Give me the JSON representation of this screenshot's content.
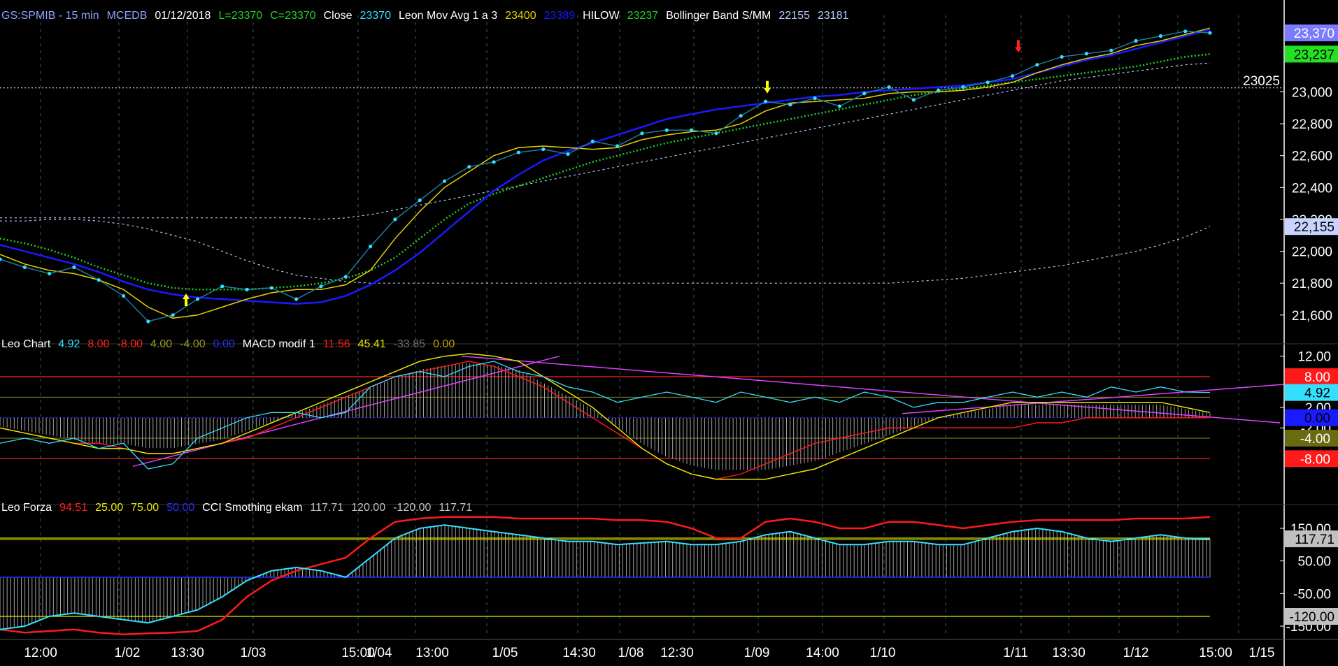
{
  "colors": {
    "background": "#000000",
    "axis": "#ffffff",
    "grid": "#3a5f5f",
    "price_dots": "#35e0ff",
    "price_line": "#1a7f9a",
    "mov_avg_fast": "#e6d200",
    "mov_avg_slow": "#1a1aff",
    "hilow_dotted": "#22d022",
    "hilow_red": "#ff2020",
    "bollinger": "#b8c8ff",
    "reference": "#ffffff",
    "leo_chart": "#35e0ff",
    "macd_red": "#ff1a1a",
    "macd_yellow": "#e6e600",
    "trendline": "#e040ff",
    "histogram": "#a0a0a0",
    "cci_red": "#ff1a1a",
    "cci_cyan": "#35e0ff",
    "cci_grey": "#c0c0c0"
  },
  "panels": {
    "price": {
      "legend": [
        {
          "text": "GS:SPMIB - 15 min",
          "color": "#8fa2ff"
        },
        {
          "text": "MCEDB",
          "color": "#8fa2ff"
        },
        {
          "text": "01/12/2018",
          "color": "#ffffff"
        },
        {
          "text": "L=23370",
          "color": "#22d022"
        },
        {
          "text": "C=23370",
          "color": "#22d022"
        },
        {
          "text": "Close",
          "color": "#ffffff"
        },
        {
          "text": "23370",
          "color": "#35e0ff"
        },
        {
          "text": "Leon Mov Avg 1 a 3",
          "color": "#ffffff"
        },
        {
          "text": "23400",
          "color": "#e6d200"
        },
        {
          "text": "23389",
          "color": "#1a1aff"
        },
        {
          "text": "HILOW",
          "color": "#ffffff"
        },
        {
          "text": "23237",
          "color": "#22d022"
        },
        {
          "text": "Bollinger Band S/MM",
          "color": "#ffffff"
        },
        {
          "text": "22155",
          "color": "#b8c8ff"
        },
        {
          "text": "23181",
          "color": "#b8c8ff"
        }
      ],
      "ticks": [
        "23,000",
        "22,800",
        "22,600",
        "22,400",
        "22,200",
        "22,000",
        "21,800",
        "21,600"
      ],
      "reference_label": "23025",
      "value_tags": [
        {
          "text": "23,370",
          "bg": "#7b7bff",
          "fg": "#ffffff",
          "y": 23370
        },
        {
          "text": "23,237",
          "bg": "#22e022",
          "fg": "#000000",
          "y": 23237
        },
        {
          "text": "22,155",
          "bg": "#c8d4ff",
          "fg": "#000000",
          "y": 22155
        }
      ]
    },
    "macd": {
      "legend": [
        {
          "text": "Leo Chart",
          "color": "#ffffff"
        },
        {
          "text": "4.92",
          "color": "#35e0ff"
        },
        {
          "text": "8.00",
          "color": "#ff2020"
        },
        {
          "text": "-8.00",
          "color": "#ff2020"
        },
        {
          "text": "4.00",
          "color": "#9a9a20"
        },
        {
          "text": "-4.00",
          "color": "#9a9a20"
        },
        {
          "text": "0.00",
          "color": "#2a2aff"
        },
        {
          "text": "MACD modif 1",
          "color": "#ffffff"
        },
        {
          "text": "11.56",
          "color": "#ff2020"
        },
        {
          "text": "45.41",
          "color": "#e6e600"
        },
        {
          "text": "-33.85",
          "color": "#707070"
        },
        {
          "text": "0.00",
          "color": "#c8a000"
        }
      ],
      "ticks": [
        "12.00",
        "2.00",
        "-2.00"
      ],
      "value_tags": [
        {
          "text": "8.00",
          "bg": "#ff1a1a",
          "fg": "#ffffff",
          "y": 8
        },
        {
          "text": "4.92",
          "bg": "#35e0ff",
          "fg": "#000000",
          "y": 4.92
        },
        {
          "text": "0.00",
          "bg": "#1a1aff",
          "fg": "#000000",
          "y": 0
        },
        {
          "text": "-4.00",
          "bg": "#6a6a10",
          "fg": "#ffffff",
          "y": -4
        },
        {
          "text": "-8.00",
          "bg": "#ff1a1a",
          "fg": "#ffffff",
          "y": -8
        }
      ]
    },
    "cci": {
      "legend": [
        {
          "text": "Leo Forza",
          "color": "#ffffff"
        },
        {
          "text": "94.51",
          "color": "#ff2020"
        },
        {
          "text": "25.00",
          "color": "#e6e600"
        },
        {
          "text": "75.00",
          "color": "#e6e600"
        },
        {
          "text": "50.00",
          "color": "#2a2aff"
        },
        {
          "text": "CCI Smothing ekam",
          "color": "#ffffff"
        },
        {
          "text": "117.71",
          "color": "#c0c0c0"
        },
        {
          "text": "120.00",
          "color": "#c0c0c0"
        },
        {
          "text": "-120.00",
          "color": "#c0c0c0"
        },
        {
          "text": "117.71",
          "color": "#c0c0c0"
        }
      ],
      "ticks": [
        "150.00",
        "50.00",
        "-50.00",
        "-150.00"
      ],
      "value_tags": [
        {
          "text": "117.71",
          "bg": "#c0c0c0",
          "fg": "#000000",
          "y": 117.71
        },
        {
          "text": "-120.00",
          "bg": "#c0c0c0",
          "fg": "#000000",
          "y": -120
        }
      ]
    }
  },
  "x_axis_labels": [
    "12:00",
    "1/02",
    "13:30",
    "1/03",
    "15:00",
    "1/04",
    "13:00",
    "1/05",
    "14:30",
    "1/08",
    "12:30",
    "1/09",
    "14:00",
    "1/10",
    "1/11",
    "13:30",
    "1/12",
    "15:00",
    "1/15"
  ],
  "chart_data": [
    {
      "type": "line",
      "panel": "price",
      "ylim": [
        21450,
        23480
      ],
      "series": [
        {
          "name": "Close",
          "values": [
            21950,
            21900,
            21860,
            21900,
            21820,
            21720,
            21560,
            21600,
            21700,
            21780,
            21760,
            21770,
            21700,
            21780,
            21840,
            22030,
            22200,
            22320,
            22440,
            22530,
            22560,
            22620,
            22640,
            22610,
            22690,
            22660,
            22740,
            22760,
            22760,
            22740,
            22850,
            22940,
            22920,
            22960,
            22910,
            22990,
            23030,
            22950,
            23010,
            23030,
            23060,
            23100,
            23170,
            23220,
            23240,
            23260,
            23320,
            23350,
            23380,
            23370
          ]
        },
        {
          "name": "23400",
          "values": [
            21980,
            21920,
            21880,
            21860,
            21820,
            21760,
            21650,
            21580,
            21600,
            21650,
            21700,
            21740,
            21760,
            21760,
            21790,
            21880,
            22080,
            22250,
            22400,
            22500,
            22600,
            22650,
            22660,
            22650,
            22640,
            22650,
            22700,
            22730,
            22750,
            22760,
            22800,
            22880,
            22930,
            22940,
            22950,
            22960,
            22990,
            23000,
            23000,
            23010,
            23030,
            23060,
            23120,
            23170,
            23210,
            23240,
            23290,
            23320,
            23360,
            23400
          ]
        },
        {
          "name": "23389",
          "values": [
            22040,
            22000,
            21960,
            21920,
            21870,
            21810,
            21760,
            21730,
            21710,
            21700,
            21690,
            21680,
            21670,
            21680,
            21720,
            21790,
            21880,
            21990,
            22120,
            22250,
            22380,
            22480,
            22570,
            22630,
            22680,
            22730,
            22780,
            22830,
            22860,
            22890,
            22910,
            22930,
            22950,
            22970,
            22980,
            23000,
            23010,
            23020,
            23030,
            23040,
            23060,
            23080,
            23120,
            23160,
            23200,
            23230,
            23270,
            23310,
            23350,
            23389
          ]
        },
        {
          "name": "23237",
          "values": [
            22080,
            22050,
            22010,
            21960,
            21900,
            21850,
            21800,
            21770,
            21760,
            21760,
            21760,
            21770,
            21780,
            21800,
            21830,
            21880,
            21960,
            22080,
            22200,
            22300,
            22360,
            22410,
            22460,
            22510,
            22560,
            22600,
            22640,
            22680,
            22710,
            22740,
            22770,
            22800,
            22830,
            22860,
            22890,
            22920,
            22950,
            22980,
            23000,
            23020,
            23040,
            23060,
            23080,
            23100,
            23120,
            23140,
            23160,
            23190,
            23220,
            23237
          ]
        },
        {
          "name": "22155",
          "values": [
            22190,
            22190,
            22200,
            22200,
            22190,
            22170,
            22140,
            22100,
            22060,
            22000,
            21940,
            21890,
            21850,
            21830,
            21810,
            21800,
            21800,
            21800,
            21800,
            21800,
            21800,
            21800,
            21800,
            21800,
            21800,
            21800,
            21800,
            21800,
            21800,
            21800,
            21800,
            21800,
            21800,
            21800,
            21800,
            21800,
            21800,
            21810,
            21820,
            21830,
            21850,
            21870,
            21890,
            21910,
            21940,
            21970,
            22000,
            22040,
            22090,
            22155
          ]
        },
        {
          "name": "23181",
          "values": [
            22210,
            22210,
            22210,
            22210,
            22210,
            22210,
            22210,
            22210,
            22210,
            22210,
            22210,
            22210,
            22210,
            22200,
            22210,
            22230,
            22260,
            22290,
            22320,
            22350,
            22380,
            22410,
            22440,
            22470,
            22500,
            22530,
            22560,
            22590,
            22620,
            22650,
            22680,
            22710,
            22740,
            22770,
            22800,
            22830,
            22860,
            22890,
            22920,
            22950,
            22980,
            23010,
            23040,
            23070,
            23090,
            23110,
            23130,
            23150,
            23170,
            23181
          ]
        }
      ]
    },
    {
      "type": "line",
      "panel": "macd",
      "ylim": [
        -16,
        14
      ],
      "series": [
        {
          "name": "4.92",
          "values": [
            -5,
            -4,
            -5,
            -4,
            -6,
            -5,
            -10,
            -9,
            -4,
            -2,
            0,
            1,
            1,
            0,
            1,
            6,
            8,
            9,
            8,
            10,
            11,
            9,
            8,
            6,
            5,
            3,
            4,
            5,
            4,
            3,
            5,
            4,
            3,
            4,
            3,
            5,
            4,
            2,
            3,
            3,
            4,
            5,
            4,
            5,
            4,
            6,
            5,
            6,
            5,
            4.92
          ]
        },
        {
          "name": "11.56",
          "values": [
            -2,
            -3,
            -4,
            -5,
            -5,
            -6,
            -7,
            -7,
            -6,
            -5,
            -4,
            -2,
            0,
            2,
            4,
            6,
            8,
            9,
            10,
            11,
            10,
            8,
            6,
            3,
            0,
            -3,
            -6,
            -9,
            -11,
            -12,
            -11,
            -9,
            -7,
            -5,
            -4,
            -3,
            -2,
            -2,
            -2,
            -2,
            -2,
            -2,
            -1,
            -1,
            0,
            0,
            0,
            0,
            0,
            0
          ]
        },
        {
          "name": "45.41",
          "values": [
            -2,
            -3,
            -4,
            -5,
            -6,
            -6,
            -7,
            -7,
            -6,
            -5,
            -3,
            -1,
            1,
            3,
            5,
            7,
            9,
            11,
            12,
            12.5,
            12,
            11,
            8,
            5,
            2,
            -2,
            -6,
            -9,
            -11,
            -12,
            -12,
            -12,
            -11,
            -10,
            -8,
            -6,
            -4,
            -2,
            0,
            1,
            2,
            3,
            3,
            3,
            3,
            3,
            3,
            3,
            2,
            1
          ]
        }
      ]
    },
    {
      "type": "line",
      "panel": "cci",
      "ylim": [
        -180,
        210
      ],
      "series": [
        {
          "name": "94.51",
          "values": [
            -160,
            -170,
            -165,
            -160,
            -170,
            -175,
            -172,
            -170,
            -165,
            -130,
            -60,
            -10,
            20,
            40,
            60,
            120,
            170,
            180,
            185,
            185,
            185,
            180,
            180,
            180,
            180,
            175,
            175,
            170,
            150,
            120,
            120,
            170,
            180,
            170,
            150,
            150,
            170,
            170,
            160,
            150,
            160,
            170,
            175,
            175,
            175,
            175,
            180,
            180,
            180,
            185
          ]
        },
        {
          "name": "117.71",
          "values": [
            -160,
            -150,
            -120,
            -110,
            -120,
            -130,
            -140,
            -120,
            -100,
            -60,
            -10,
            20,
            30,
            20,
            0,
            60,
            120,
            150,
            160,
            150,
            140,
            130,
            120,
            110,
            110,
            100,
            105,
            110,
            100,
            100,
            110,
            130,
            140,
            120,
            100,
            100,
            110,
            110,
            100,
            100,
            120,
            140,
            150,
            140,
            120,
            110,
            120,
            130,
            120,
            117.71
          ]
        }
      ]
    }
  ]
}
